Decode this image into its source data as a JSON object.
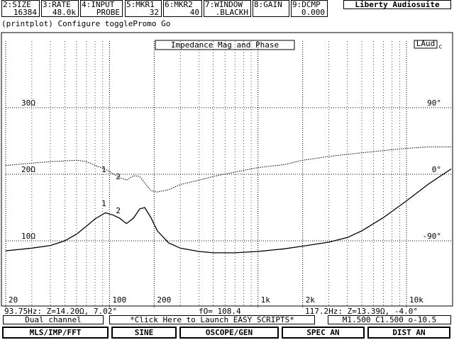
{
  "app_title": "Liberty Audiosuite",
  "toolbar": [
    {
      "label": "2:SIZE",
      "value": "16384"
    },
    {
      "label": "3:RATE",
      "value": "48.0k"
    },
    {
      "label": "4:INPUT",
      "value": "PROBE"
    },
    {
      "label": "5:MKR1",
      "value": "32"
    },
    {
      "label": "6:MKR2",
      "value": "40"
    },
    {
      "label": "7:WINDOW",
      "value": ".BLACKH"
    },
    {
      "label": "8:GAIN"
    },
    {
      "label": "9:DCMP",
      "value": "0.000"
    }
  ],
  "command_line": "(printplot) Configure togglePromo Go",
  "chart_data": {
    "type": "line",
    "title": "Impedance Mag and Phase",
    "badge": "LAud",
    "badge_sub": "c",
    "xscale": "log",
    "xlim": [
      20,
      20000
    ],
    "xticks": [
      20,
      100,
      200,
      {
        "value": 1000,
        "label": "1k"
      },
      {
        "value": 2000,
        "label": "2k"
      },
      {
        "value": 10000,
        "label": "10k"
      }
    ],
    "xgrid_minor": [
      30,
      40,
      50,
      60,
      70,
      80,
      90,
      300,
      400,
      500,
      600,
      700,
      800,
      900,
      3000,
      4000,
      5000,
      6000,
      7000,
      8000,
      9000
    ],
    "ylim": [
      0,
      40
    ],
    "yticks": [
      {
        "value": 10,
        "label": "10Ω"
      },
      {
        "value": 20,
        "label": "20Ω"
      },
      {
        "value": 30,
        "label": "30Ω"
      }
    ],
    "y2lim": [
      -180,
      180
    ],
    "y2ticks": [
      {
        "value": 90,
        "label": "90°"
      },
      {
        "value": 0,
        "label": "0°"
      },
      {
        "value": -90,
        "label": "-90°"
      }
    ],
    "grid": true,
    "x": [
      20,
      30,
      40,
      50,
      60,
      70,
      80,
      93.75,
      105,
      117.2,
      130,
      145,
      160,
      173,
      190,
      210,
      250,
      300,
      400,
      500,
      700,
      1000,
      1500,
      2000,
      3000,
      4000,
      5000,
      7000,
      10000,
      14000,
      20000
    ],
    "series": [
      {
        "color": "#000000",
        "style": "solid",
        "values": [
          8.5,
          8.9,
          9.3,
          10.0,
          11.0,
          12.2,
          13.3,
          14.2,
          13.9,
          13.39,
          12.6,
          13.4,
          14.8,
          15.0,
          13.5,
          11.5,
          9.7,
          8.9,
          8.4,
          8.2,
          8.2,
          8.4,
          8.8,
          9.2,
          9.8,
          10.5,
          11.5,
          13.5,
          16.0,
          18.5,
          20.8
        ]
      },
      {
        "color": "#000000",
        "style": "dotted",
        "axis": "y2",
        "values": [
          12,
          15,
          17,
          18,
          19,
          17,
          12,
          7.02,
          1,
          -4.0,
          -8,
          -2,
          -3,
          -12,
          -22,
          -24,
          -21,
          -14,
          -8,
          -3,
          3,
          9,
          13,
          19,
          24,
          27,
          29,
          32,
          35,
          37,
          37
        ]
      }
    ],
    "markers": [
      {
        "label": "1",
        "x": 93.75
      },
      {
        "label": "2",
        "x": 117.2
      }
    ]
  },
  "status": {
    "marker1": "93.75Hz: Z=14.20Ω, 7.02°",
    "f0": "fO= 108.4",
    "marker2": "117.2Hz: Z=13.39Ω, -4.0°"
  },
  "info_bar": {
    "mode": "Dual channel",
    "scripts": "*Click Here to Launch EASY SCRIPTS*",
    "params": "M1.500 C1.500 o-10.5"
  },
  "buttons": [
    "MLS/IMP/FFT",
    "SINE",
    "OSCOPE/GEN",
    "SPEC AN",
    "DIST AN"
  ]
}
